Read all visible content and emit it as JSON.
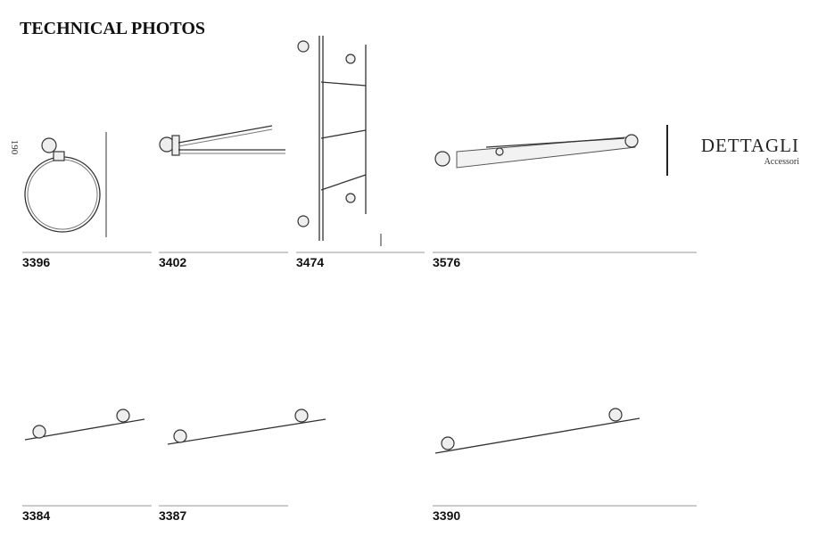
{
  "header": {
    "title": "TECHNICAL PHOTOS"
  },
  "side_label": "190",
  "brand": {
    "name": "DETTAGLI",
    "subtitle": "Accessori"
  },
  "products": [
    {
      "code": "3396"
    },
    {
      "code": "3402"
    },
    {
      "code": "3474"
    },
    {
      "code": "3576"
    },
    {
      "code": "3384"
    },
    {
      "code": "3387"
    },
    {
      "code": "3390"
    }
  ]
}
